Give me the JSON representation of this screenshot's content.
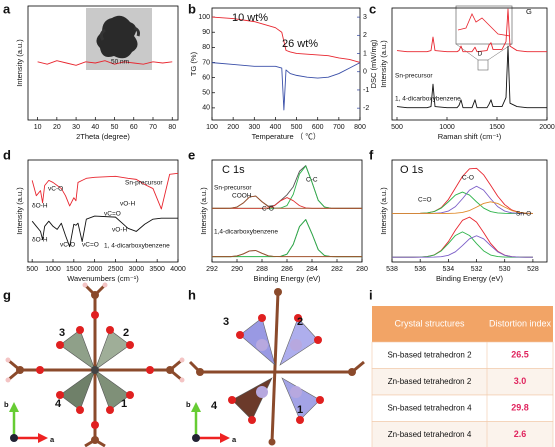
{
  "panel_labels": [
    "a",
    "b",
    "c",
    "d",
    "e",
    "f",
    "g",
    "h",
    "i"
  ],
  "chart_data": [
    {
      "type": "line",
      "xlabel": "2Theta (degree)",
      "ylabel": "Intensity (a.u.)",
      "x": [
        10,
        15,
        20,
        25,
        30,
        35,
        40,
        45,
        50,
        55,
        60,
        65,
        70,
        75,
        80
      ],
      "series": [
        {
          "color": "#e8262f",
          "values": [
            5.1,
            4.9,
            5.2,
            5.0,
            4.8,
            5.1,
            5.0,
            5.2,
            4.9,
            5.1,
            5.0,
            4.9,
            5.1,
            5.0,
            5.1
          ]
        }
      ],
      "xlim": [
        5,
        83
      ],
      "ylim": [
        0,
        10
      ],
      "xticks": [
        10,
        20,
        30,
        40,
        50,
        60,
        70,
        80
      ],
      "annotations": [
        "50 nm"
      ]
    },
    {
      "type": "line",
      "xlabel": "Temperature （ ℃）",
      "ylabel": "TG (%)",
      "y2label": "DSC (mW/mg)",
      "x": [
        100,
        200,
        300,
        400,
        430,
        440,
        450,
        470,
        500,
        550,
        600,
        650,
        700,
        750,
        800
      ],
      "series": [
        {
          "color": "#e8262f",
          "values": [
            100,
            99,
            97,
            93,
            90,
            84,
            78,
            77,
            76,
            75.5,
            75,
            74.5,
            73,
            72,
            70
          ]
        },
        {
          "color": "#3a4fa8",
          "axis": "y2",
          "values": [
            0.5,
            0.4,
            0.3,
            0.3,
            0.2,
            -2.1,
            0.1,
            -0.1,
            -0.2,
            -0.3,
            -0.35,
            -0.3,
            -0.1,
            0.2,
            0.5
          ]
        }
      ],
      "xlim": [
        100,
        800
      ],
      "ylim": [
        32,
        106
      ],
      "yticks": [
        40,
        50,
        60,
        70,
        80,
        90,
        100
      ],
      "y2lim": [
        -2.65,
        3.5
      ],
      "y2ticks": [
        -2,
        -1,
        0,
        1,
        2,
        3
      ],
      "xticks": [
        100,
        200,
        300,
        400,
        500,
        600,
        700,
        800
      ],
      "annotations": [
        "10 wt%",
        "26 wt%"
      ]
    },
    {
      "type": "line",
      "xlabel": "Raman shift (cm⁻¹)",
      "ylabel": "Intensity (a.u.)",
      "x": [
        500,
        600,
        700,
        800,
        840,
        860,
        880,
        1000,
        1100,
        1120,
        1140,
        1160,
        1250,
        1280,
        1300,
        1400,
        1420,
        1440,
        1460,
        1550,
        1590,
        1610,
        1630,
        1700,
        1800,
        1900,
        2000
      ],
      "series": [
        {
          "color": "#e8262f",
          "values": [
            6.2,
            6.1,
            6.1,
            6.1,
            6.2,
            7.4,
            6.2,
            6.1,
            6.1,
            6.2,
            6.6,
            6.1,
            6.1,
            6.5,
            6.1,
            6.2,
            6.7,
            6.9,
            6.3,
            6.3,
            7,
            9.9,
            6.6,
            6.2,
            6.1,
            6.1,
            6.1
          ]
        },
        {
          "color": "#111111",
          "values": [
            1.2,
            1.1,
            1.1,
            1.1,
            1.2,
            3.2,
            1.2,
            1.1,
            1.1,
            1.3,
            1.8,
            1.1,
            1.1,
            1.8,
            1.1,
            1.1,
            1.4,
            1.8,
            1.2,
            1.2,
            2,
            6.6,
            1.5,
            1.2,
            1.1,
            1.1,
            1.1
          ]
        }
      ],
      "xlim": [
        450,
        2000
      ],
      "ylim": [
        0,
        10
      ],
      "xticks": [
        500,
        1000,
        1500,
        2000
      ],
      "annotations": [
        "Sn-precursor",
        "1, 4-dicarboxybenzene",
        "G",
        "D"
      ]
    },
    {
      "type": "line",
      "xlabel": "Wavenumbers (cm⁻¹)",
      "ylabel": "Intensity (a.u.)",
      "x": [
        500,
        600,
        700,
        750,
        800,
        900,
        1000,
        1100,
        1200,
        1300,
        1400,
        1500,
        1550,
        1600,
        1700,
        1800,
        2000,
        2500,
        2800,
        3000,
        3200,
        3400,
        3600,
        3800,
        4000
      ],
      "series": [
        {
          "color": "#e8262f",
          "values": [
            8,
            6.5,
            7,
            5.8,
            7.5,
            8,
            7.8,
            7.5,
            7.2,
            6.5,
            5.5,
            6.3,
            6,
            7.8,
            8,
            8.2,
            8.3,
            8.4,
            8.2,
            8.1,
            7.6,
            7.2,
            5.2,
            8.6,
            8.7
          ]
        },
        {
          "color": "#111111",
          "values": [
            4,
            3.5,
            3,
            2.2,
            3.5,
            4,
            3.5,
            3.2,
            3.8,
            2.6,
            1.5,
            3.7,
            3.6,
            3.8,
            2,
            4.2,
            4.5,
            4.4,
            3.3,
            3,
            3.7,
            4.2,
            4.3,
            4.3,
            4.3
          ]
        }
      ],
      "xlim": [
        400,
        4000
      ],
      "ylim": [
        0,
        10
      ],
      "xticks": [
        500,
        1000,
        1500,
        2000,
        2500,
        3000,
        3500,
        4000
      ],
      "annotations": [
        "Sn-precursor",
        "1, 4-dicarboxybenzene",
        "δO-H",
        "vC-O",
        "vC=O",
        "vO-H",
        "δO-H",
        "vC-O",
        "vC=O",
        "vO-H"
      ]
    },
    {
      "type": "line",
      "xlabel": "Binding Energy (eV)",
      "ylabel": "Intensity (a.u.)",
      "x": [
        292,
        291.5,
        291,
        290.5,
        290,
        289.5,
        289,
        288.5,
        288,
        287.5,
        287,
        286.5,
        286,
        285.5,
        285,
        284.5,
        284,
        283.5,
        283,
        282.5,
        282,
        281.5,
        281,
        280.5,
        280
      ],
      "series": [
        {
          "color": "#555555",
          "values": [
            5,
            5,
            5,
            5.01,
            5.12,
            5.49,
            6.06,
            6.14,
            5.61,
            5.2,
            5.27,
            5.74,
            6.26,
            7.01,
            8.45,
            8.98,
            7.43,
            5.74,
            5.12,
            5.01,
            5,
            5,
            5,
            5,
            5
          ]
        },
        {
          "color": "#2db34a",
          "values": [
            5,
            5,
            5,
            5,
            5,
            5,
            5,
            5,
            5,
            5,
            5,
            5.03,
            5.26,
            6.3,
            8.2,
            8.94,
            7.43,
            5.74,
            5.12,
            5.01,
            5,
            5,
            5,
            5,
            5
          ]
        },
        {
          "color": "#e03030",
          "values": [
            5,
            5,
            5,
            5,
            5,
            5,
            5,
            5,
            5,
            5.04,
            5.25,
            5.71,
            6,
            5.71,
            5.25,
            5.04,
            5,
            5,
            5,
            5,
            5,
            5,
            5,
            5,
            5
          ]
        },
        {
          "color": "#a0522d",
          "values": [
            5,
            5,
            5,
            5.01,
            5.12,
            5.49,
            6.06,
            6.14,
            5.61,
            5.16,
            5.02,
            5,
            5,
            5,
            5,
            5,
            5,
            5,
            5,
            5,
            5,
            5,
            5,
            5,
            5
          ]
        },
        {
          "color": "#555555",
          "values": [
            0.5,
            0.5,
            0.5,
            0.5,
            0.56,
            0.75,
            1.03,
            1.07,
            0.81,
            0.58,
            0.51,
            0.53,
            0.73,
            1.64,
            3.3,
            3.95,
            2.63,
            1.15,
            0.6,
            0.51,
            0.5,
            0.5,
            0.5,
            0.5,
            0.5
          ]
        },
        {
          "color": "#2db34a",
          "values": [
            0.5,
            0.5,
            0.5,
            0.5,
            0.5,
            0.5,
            0.5,
            0.5,
            0.5,
            0.5,
            0.5,
            0.53,
            0.73,
            1.64,
            3.3,
            3.95,
            2.63,
            1.15,
            0.6,
            0.51,
            0.5,
            0.5,
            0.5,
            0.5,
            0.5
          ]
        },
        {
          "color": "#a0522d",
          "values": [
            0.5,
            0.5,
            0.5,
            0.5,
            0.56,
            0.75,
            1.03,
            1.07,
            0.81,
            0.58,
            0.51,
            0.5,
            0.5,
            0.5,
            0.5,
            0.5,
            0.5,
            0.5,
            0.5,
            0.5,
            0.5,
            0.5,
            0.5,
            0.5,
            0.5
          ]
        }
      ],
      "xlim": [
        292,
        280
      ],
      "ylim": [
        0,
        9.5
      ],
      "xticks": [
        292,
        290,
        288,
        286,
        284,
        282,
        280
      ],
      "annotations": [
        "C 1s",
        "Sn-precursor",
        "COOH",
        "C-O",
        "C-C",
        "1,4-dicarboxybenzene"
      ]
    },
    {
      "type": "line",
      "xlabel": "Binding Energy (eV)",
      "ylabel": "Intensity (a.u.)",
      "x": [
        538,
        537.5,
        537,
        536.5,
        536,
        535.5,
        535,
        534.5,
        534,
        533.5,
        533,
        532.5,
        532,
        531.5,
        531,
        530.5,
        530,
        529.5,
        529,
        528.5,
        528
      ],
      "series": [
        {
          "color": "#e8262f",
          "values": [
            5,
            5,
            5,
            5,
            5.01,
            5.05,
            5.2,
            5.61,
            6.43,
            7.62,
            8.81,
            9.59,
            9.64,
            8.98,
            7.9,
            6.78,
            5.9,
            5.36,
            5.11,
            5.03,
            5
          ]
        },
        {
          "color": "#2db34a",
          "values": [
            5,
            5,
            5,
            5,
            5.01,
            5.05,
            5.19,
            5.55,
            6.19,
            6.89,
            7.2,
            6.89,
            6.19,
            5.55,
            5.19,
            5.05,
            5.01,
            5,
            5,
            5,
            5
          ]
        },
        {
          "color": "#7a5cc7",
          "values": [
            5,
            5,
            5,
            5,
            5,
            5,
            5.01,
            5.06,
            5.24,
            5.7,
            6.51,
            7.4,
            7.8,
            7.4,
            6.51,
            5.7,
            5.24,
            5.06,
            5.01,
            5,
            5
          ]
        },
        {
          "color": "#e08a2a",
          "values": [
            5,
            5,
            5,
            5,
            5,
            5,
            5,
            5,
            5,
            5.03,
            5.1,
            5.3,
            5.65,
            6.03,
            6.2,
            6.03,
            5.65,
            5.3,
            5.1,
            5.03,
            5
          ]
        },
        {
          "color": "#e8262f",
          "values": [
            0.5,
            0.5,
            0.5,
            0.5,
            0.51,
            0.56,
            0.73,
            1.2,
            2.09,
            3.28,
            4.29,
            4.62,
            4.1,
            3.04,
            1.91,
            1.11,
            0.7,
            0.55,
            0.51,
            0.5,
            0.5
          ]
        },
        {
          "color": "#2db34a",
          "values": [
            0.5,
            0.5,
            0.5,
            0.5,
            0.51,
            0.56,
            0.72,
            1.15,
            1.9,
            2.73,
            3.1,
            2.73,
            1.9,
            1.15,
            0.72,
            0.56,
            0.51,
            0.5,
            0.5,
            0.5,
            0.5
          ]
        },
        {
          "color": "#7a5cc7",
          "values": [
            0.5,
            0.5,
            0.5,
            0.5,
            0.5,
            0.5,
            0.51,
            0.55,
            0.69,
            1.05,
            1.69,
            2.39,
            2.7,
            2.39,
            1.69,
            1.05,
            0.69,
            0.55,
            0.51,
            0.5,
            0.5
          ]
        }
      ],
      "xlim": [
        538,
        527
      ],
      "ylim": [
        0,
        10.5
      ],
      "xticks": [
        538,
        536,
        534,
        532,
        530,
        528
      ],
      "annotations": [
        "O 1s",
        "C-O",
        "C=O",
        "Sn-O"
      ]
    }
  ],
  "structures": [
    {
      "sites": [
        "3",
        "2",
        "4",
        "1"
      ],
      "axes": [
        "b",
        "a"
      ]
    },
    {
      "sites": [
        "3",
        "2",
        "4",
        "1"
      ],
      "axes": [
        "b",
        "a"
      ]
    }
  ],
  "table": {
    "header": [
      "Crystal structures",
      "Distortion index"
    ],
    "rows": [
      [
        "Sn-based tetrahedron 2",
        "26.5"
      ],
      [
        "Zn-based tetrahedron 2",
        "3.0"
      ],
      [
        "Sn-based tetrahedron 4",
        "29.8"
      ],
      [
        "Zn-based tetrahedron 4",
        "2.6"
      ]
    ]
  }
}
